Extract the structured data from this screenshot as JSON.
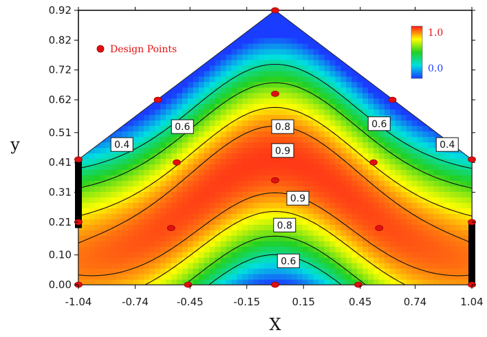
{
  "chart_data": {
    "type": "heatmap",
    "title": "",
    "xlabel": "X",
    "ylabel": "y",
    "xlim": [
      -1.04,
      1.04
    ],
    "ylim": [
      0.0,
      0.92
    ],
    "x_ticks": [
      "-1.04",
      "-0.74",
      "-0.45",
      "-0.15",
      "0.15",
      "0.45",
      "0.74",
      "1.04"
    ],
    "y_ticks": [
      "0.00",
      "0.10",
      "0.21",
      "0.31",
      "0.41",
      "0.51",
      "0.62",
      "0.72",
      "0.82",
      "0.92"
    ],
    "colorbar": {
      "min_label": "0.0",
      "max_label": "1.0",
      "min_color": "#1a3cff",
      "max_color": "#ff1a1a"
    },
    "legend": {
      "label": "Design Points",
      "position": "top-left",
      "marker_color": "#e01010"
    },
    "design_points": [
      {
        "x": 0.0,
        "y": 0.92
      },
      {
        "x": -0.62,
        "y": 0.62
      },
      {
        "x": 0.62,
        "y": 0.62
      },
      {
        "x": 0.0,
        "y": 0.64
      },
      {
        "x": -0.52,
        "y": 0.41
      },
      {
        "x": 0.52,
        "y": 0.41
      },
      {
        "x": 0.0,
        "y": 0.35
      },
      {
        "x": -1.04,
        "y": 0.42
      },
      {
        "x": 1.04,
        "y": 0.42
      },
      {
        "x": -1.04,
        "y": 0.21
      },
      {
        "x": 1.04,
        "y": 0.21
      },
      {
        "x": -0.55,
        "y": 0.19
      },
      {
        "x": 0.55,
        "y": 0.19
      },
      {
        "x": -1.04,
        "y": 0.0
      },
      {
        "x": -0.46,
        "y": 0.0
      },
      {
        "x": 0.0,
        "y": 0.0
      },
      {
        "x": 0.44,
        "y": 0.0
      },
      {
        "x": 1.04,
        "y": 0.0
      }
    ],
    "contour_levels": [
      0.4,
      0.6,
      0.8,
      0.9
    ],
    "contour_labels": [
      {
        "text": "0.4",
        "x": -0.81,
        "y": 0.47
      },
      {
        "text": "0.6",
        "x": -0.49,
        "y": 0.53
      },
      {
        "text": "0.8",
        "x": 0.04,
        "y": 0.53
      },
      {
        "text": "0.9",
        "x": 0.04,
        "y": 0.45
      },
      {
        "text": "0.6",
        "x": 0.55,
        "y": 0.54
      },
      {
        "text": "0.4",
        "x": 0.91,
        "y": 0.47
      },
      {
        "text": "0.9",
        "x": 0.12,
        "y": 0.29
      },
      {
        "text": "0.8",
        "x": 0.05,
        "y": 0.2
      },
      {
        "text": "0.6",
        "x": 0.07,
        "y": 0.08
      }
    ],
    "boundary_bars": [
      {
        "side": "left",
        "y_from": 0.19,
        "y_to": 0.42
      },
      {
        "side": "right",
        "y_from": 0.0,
        "y_to": 0.21
      }
    ]
  }
}
